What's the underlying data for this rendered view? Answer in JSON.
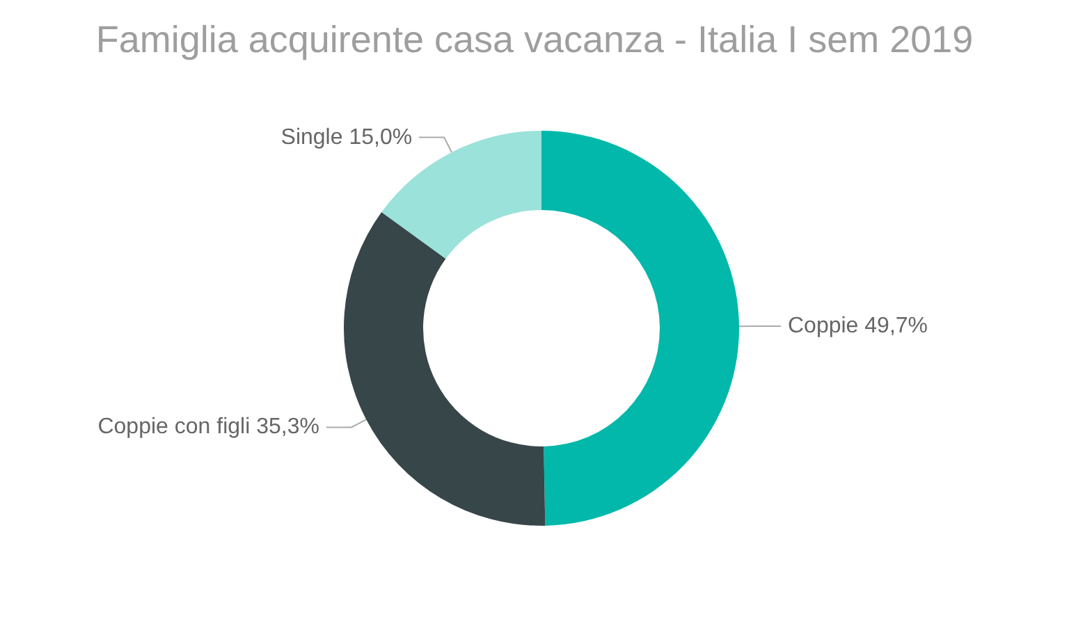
{
  "chart_data": {
    "type": "donut",
    "title": "Famiglia acquirente casa vacanza - Italia I sem 2019",
    "categories": [
      "Coppie",
      "Coppie con figli",
      "Single"
    ],
    "values": [
      49.7,
      35.3,
      15.0
    ],
    "colors": [
      "#01b8aa",
      "#374649",
      "#9ae2da"
    ],
    "value_labels": [
      "49,7%",
      "35,3%",
      "15,0%"
    ]
  }
}
